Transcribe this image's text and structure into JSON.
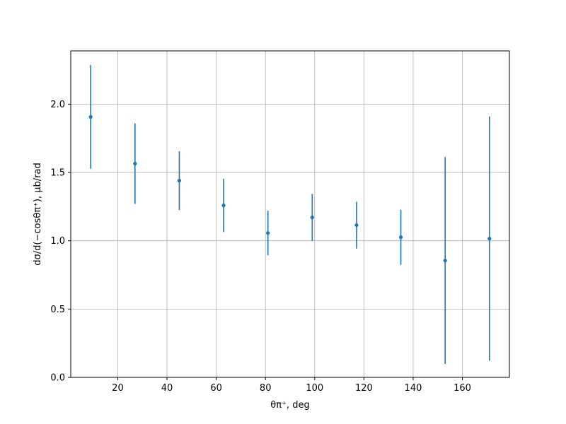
{
  "chart_data": {
    "type": "errorbar",
    "xlabel": "θπ⁺, deg",
    "ylabel": "dσ/d(−cosθπ⁺), μb/rad",
    "x": [
      9,
      27,
      45,
      63,
      81,
      99,
      117,
      135,
      153,
      171
    ],
    "series": [
      {
        "color": "#1f77b4",
        "values": [
          1.907,
          1.565,
          1.44,
          1.259,
          1.057,
          1.171,
          1.114,
          1.026,
          0.855,
          1.016
        ],
        "errors": [
          0.38,
          0.295,
          0.215,
          0.195,
          0.163,
          0.172,
          0.171,
          0.202,
          0.757,
          0.894
        ]
      }
    ],
    "xlim": [
      0.9,
      179.1
    ],
    "ylim": [
      0,
      2.39
    ],
    "xticks": [
      20,
      40,
      60,
      80,
      100,
      120,
      140,
      160
    ],
    "yticks": [
      {
        "value": 0,
        "label": "0.0"
      },
      0.5,
      {
        "value": 1,
        "label": "1.0"
      },
      1.5,
      {
        "value": 2,
        "label": "2.0"
      }
    ],
    "grid": true
  }
}
